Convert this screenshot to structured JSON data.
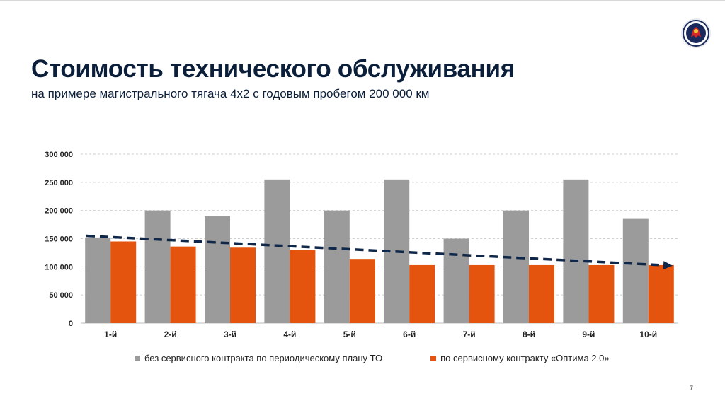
{
  "title": "Стоимость технического обслуживания",
  "subtitle": "на примере магистрального тягача 4х2 с годовым пробегом 200 000 км",
  "page_number": "7",
  "colors": {
    "series_1": "#9b9b9b",
    "series_2": "#e5540f",
    "trend": "#0f2748",
    "title": "#0b1f3a"
  },
  "logo": {
    "icon": "griffin-badge-icon"
  },
  "chart_data": {
    "type": "bar",
    "categories": [
      "1-й",
      "2-й",
      "3-й",
      "4-й",
      "5-й",
      "6-й",
      "7-й",
      "8-й",
      "9-й",
      "10-й"
    ],
    "series": [
      {
        "name": "без сервисного контракта по периодическому плану ТО",
        "values": [
          152000,
          200000,
          190000,
          255000,
          200000,
          255000,
          150000,
          200000,
          255000,
          185000
        ]
      },
      {
        "name": "по сервисному контракту «Оптима 2.0»",
        "values": [
          145000,
          136000,
          134000,
          130000,
          114000,
          103000,
          103000,
          103000,
          103000,
          103000
        ]
      }
    ],
    "trendline": {
      "style": "dashed",
      "start": 155000,
      "end": 102000
    },
    "yticks": [
      "0",
      "50 000",
      "100 000",
      "150 000",
      "200 000",
      "250 000",
      "300 000"
    ],
    "ylim": [
      0,
      300000
    ],
    "grid": "horizontal dashed",
    "legend_position": "bottom"
  }
}
